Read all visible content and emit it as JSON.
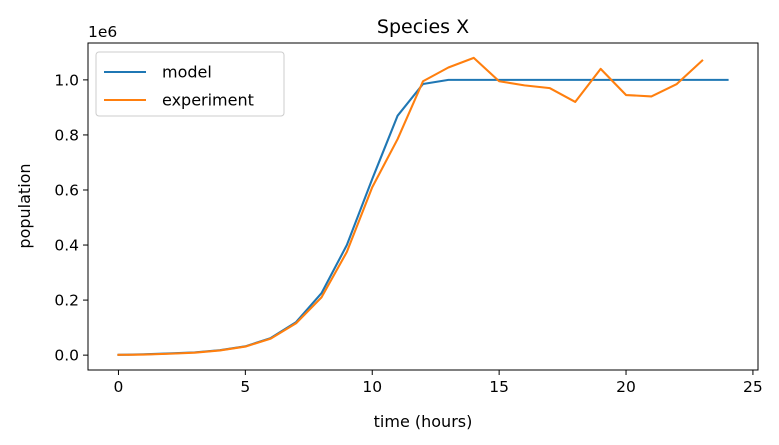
{
  "chart_data": {
    "type": "line",
    "title": "Species X",
    "xlabel": "time (hours)",
    "ylabel": "population",
    "y_offset_text": "1e6",
    "xlim": [
      -1.2,
      25.2
    ],
    "ylim": [
      -0.054,
      1.134
    ],
    "x_ticks": [
      0,
      5,
      10,
      15,
      20,
      25
    ],
    "x_tick_labels": [
      "0",
      "5",
      "10",
      "15",
      "20",
      "25"
    ],
    "y_ticks": [
      0.0,
      0.2,
      0.4,
      0.6,
      0.8,
      1.0
    ],
    "y_tick_labels": [
      "0.0",
      "0.2",
      "0.4",
      "0.6",
      "0.8",
      "1.0"
    ],
    "grid": false,
    "legend_position": "upper-left",
    "series": [
      {
        "name": "model",
        "color": "#1f77b4",
        "x": [
          0,
          1,
          2,
          3,
          4,
          5,
          6,
          7,
          8,
          9,
          10,
          11,
          12,
          13,
          14,
          15,
          16,
          17,
          18,
          19,
          20,
          21,
          22,
          23,
          24
        ],
        "y": [
          0.001,
          0.003,
          0.006,
          0.01,
          0.018,
          0.032,
          0.062,
          0.12,
          0.225,
          0.4,
          0.64,
          0.87,
          0.985,
          1.0,
          1.0,
          1.0,
          1.0,
          1.0,
          1.0,
          1.0,
          1.0,
          1.0,
          1.0,
          1.0,
          1.0
        ]
      },
      {
        "name": "experiment",
        "color": "#ff7f0e",
        "x": [
          0,
          1,
          2,
          3,
          4,
          5,
          6,
          7,
          8,
          9,
          10,
          11,
          12,
          13,
          14,
          15,
          16,
          17,
          18,
          19,
          20,
          21,
          22,
          23
        ],
        "y": [
          0.001,
          0.002,
          0.005,
          0.009,
          0.017,
          0.031,
          0.06,
          0.116,
          0.21,
          0.375,
          0.61,
          0.785,
          0.995,
          1.045,
          1.08,
          0.995,
          0.98,
          0.97,
          0.92,
          1.04,
          0.945,
          0.94,
          0.985,
          1.07
        ]
      }
    ]
  }
}
